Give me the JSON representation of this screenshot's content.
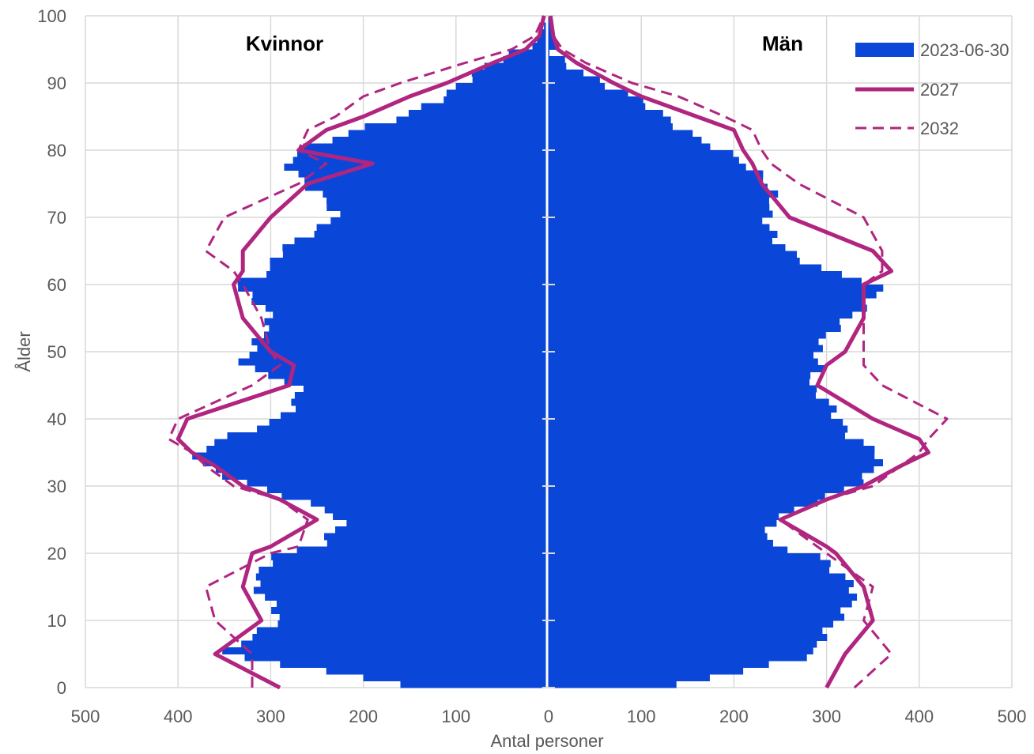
{
  "chart_data": {
    "type": "population-pyramid",
    "left_label": "Kvinnor",
    "right_label": "Män",
    "xlabel": "Antal personer",
    "ylabel": "Ålder",
    "xlim": [
      -500,
      500
    ],
    "ylim": [
      0,
      100
    ],
    "x_tick_labels": [
      "500",
      "400",
      "300",
      "200",
      "100",
      "0",
      "100",
      "200",
      "300",
      "400",
      "500"
    ],
    "y_tick_labels": [
      "0",
      "10",
      "20",
      "30",
      "40",
      "50",
      "60",
      "70",
      "80",
      "90",
      "100"
    ],
    "grid": true,
    "legend_position": "top-right",
    "colors": {
      "bars": "#0a47d9",
      "line": "#b0257f",
      "grid": "#d9d9d9"
    },
    "legend": [
      {
        "key": "bars",
        "label": "2023-06-30",
        "style": "bar"
      },
      {
        "key": "line2027",
        "label": "2027",
        "style": "solid-line"
      },
      {
        "key": "line2032",
        "label": "2032",
        "style": "dashed-line"
      }
    ],
    "ages": [
      0,
      5,
      10,
      15,
      20,
      21,
      25,
      28,
      30,
      33,
      35,
      37,
      40,
      45,
      48,
      50,
      55,
      60,
      62,
      65,
      70,
      75,
      78,
      80,
      83,
      85,
      88,
      90,
      93,
      95,
      97,
      100
    ],
    "bars_2023": {
      "female": [
        140,
        340,
        300,
        320,
        280,
        240,
        230,
        280,
        320,
        360,
        370,
        350,
        300,
        270,
        320,
        310,
        310,
        340,
        290,
        280,
        240,
        260,
        270,
        260,
        210,
        170,
        120,
        90,
        50,
        20,
        10,
        0
      ],
      "male": [
        120,
        300,
        310,
        320,
        300,
        250,
        240,
        280,
        320,
        360,
        370,
        340,
        310,
        270,
        300,
        300,
        320,
        350,
        300,
        270,
        230,
        230,
        220,
        200,
        150,
        120,
        80,
        50,
        25,
        10,
        5,
        0
      ]
    },
    "line_2027": {
      "female": [
        290,
        360,
        310,
        330,
        320,
        300,
        250,
        290,
        330,
        360,
        385,
        400,
        390,
        280,
        275,
        300,
        330,
        340,
        330,
        330,
        300,
        260,
        190,
        270,
        240,
        200,
        150,
        110,
        60,
        25,
        10,
        5
      ],
      "male": [
        300,
        320,
        350,
        340,
        310,
        300,
        250,
        300,
        340,
        380,
        410,
        400,
        350,
        290,
        300,
        320,
        340,
        340,
        370,
        350,
        260,
        230,
        220,
        210,
        200,
        160,
        100,
        70,
        30,
        10,
        5,
        2
      ]
    },
    "line_2032": {
      "female": [
        320,
        320,
        360,
        370,
        300,
        270,
        260,
        290,
        340,
        370,
        385,
        410,
        400,
        320,
        290,
        300,
        310,
        330,
        340,
        370,
        350,
        270,
        240,
        270,
        260,
        230,
        200,
        160,
        90,
        40,
        15,
        5
      ],
      "male": [
        330,
        370,
        340,
        350,
        300,
        290,
        250,
        300,
        350,
        380,
        400,
        410,
        430,
        360,
        340,
        340,
        340,
        340,
        360,
        360,
        340,
        270,
        240,
        230,
        220,
        190,
        140,
        90,
        40,
        15,
        5,
        2
      ]
    }
  }
}
